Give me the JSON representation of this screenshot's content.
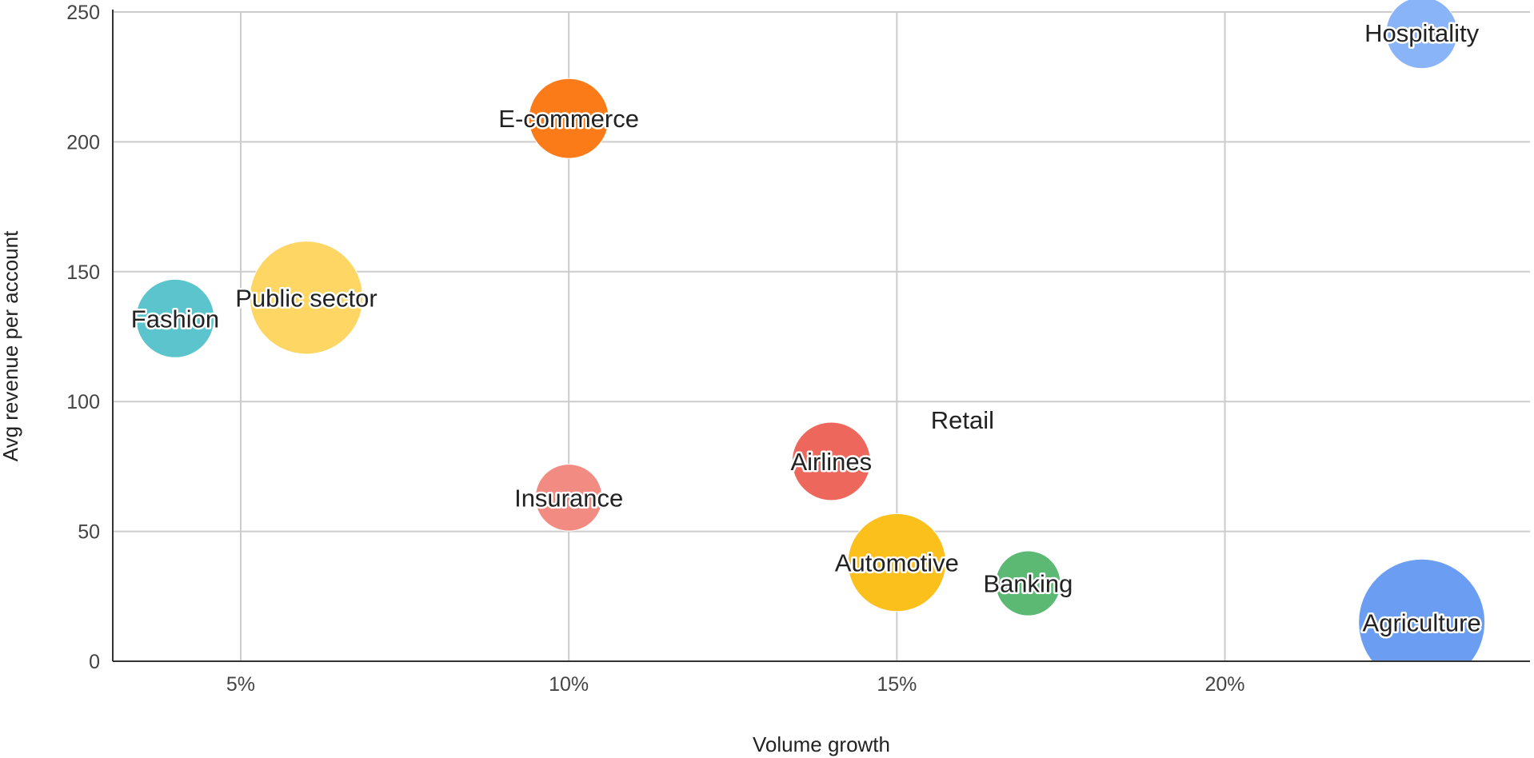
{
  "chart_data": {
    "type": "scatter",
    "xlabel": "Volume growth",
    "ylabel": "Avg revenue per account",
    "xlim": [
      3.05,
      24.65
    ],
    "ylim": [
      0,
      250
    ],
    "x_ticks": [
      {
        "value": 5,
        "label": "5%"
      },
      {
        "value": 10,
        "label": "10%"
      },
      {
        "value": 15,
        "label": "15%"
      },
      {
        "value": 20,
        "label": "20%"
      }
    ],
    "y_ticks": [
      {
        "value": 0,
        "label": "0"
      },
      {
        "value": 50,
        "label": "50"
      },
      {
        "value": 100,
        "label": "100"
      },
      {
        "value": 150,
        "label": "150"
      },
      {
        "value": 200,
        "label": "200"
      },
      {
        "value": 250,
        "label": "250"
      }
    ],
    "grid": true,
    "legend": "none",
    "points": [
      {
        "label": "Hospitality",
        "x": 23,
        "y": 242,
        "size": 40,
        "color": "#8ab4f8"
      },
      {
        "label": "E-commerce",
        "x": 10,
        "y": 209,
        "size": 50,
        "color": "#fa7b17"
      },
      {
        "label": "Public sector",
        "x": 6,
        "y": 140,
        "size": 100,
        "color": "#fdd663"
      },
      {
        "label": "Fashion",
        "x": 4,
        "y": 132,
        "size": 48,
        "color": "#5bc4cc"
      },
      {
        "label": "Retail",
        "x": 16,
        "y": 93,
        "size": 1,
        "color": "#34a853"
      },
      {
        "label": "Airlines",
        "x": 14,
        "y": 77,
        "size": 48,
        "color": "#ee675c"
      },
      {
        "label": "Insurance",
        "x": 10,
        "y": 63,
        "size": 35,
        "color": "#f28b82"
      },
      {
        "label": "Automotive",
        "x": 15,
        "y": 38,
        "size": 75,
        "color": "#fbc01c"
      },
      {
        "label": "Banking",
        "x": 17,
        "y": 30,
        "size": 33,
        "color": "#5bb974"
      },
      {
        "label": "Agriculture",
        "x": 23,
        "y": 15,
        "size": 125,
        "color": "#6b9ef2"
      }
    ]
  }
}
